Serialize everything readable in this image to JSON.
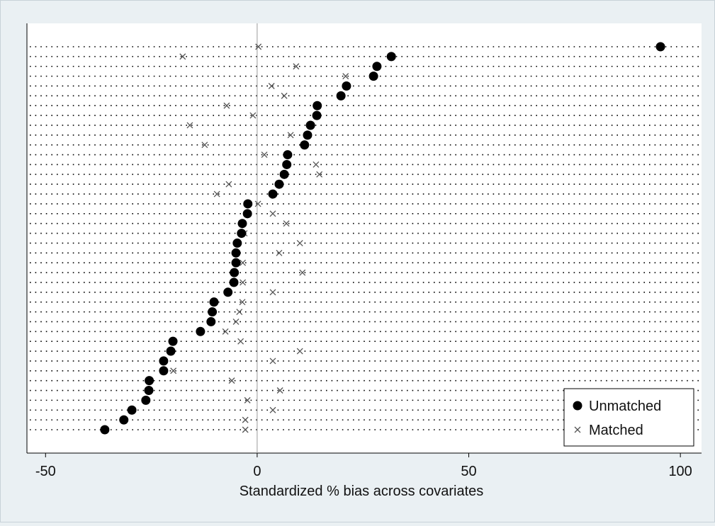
{
  "chart_data": {
    "type": "dot",
    "x_label": "Standardized % bias across covariates",
    "categories": [
      null,
      null,
      null,
      null,
      null,
      null,
      null,
      null,
      null,
      null,
      null,
      null,
      null,
      null,
      null,
      null,
      null,
      null,
      null,
      null,
      null,
      null,
      null,
      null,
      null,
      null,
      null,
      null,
      null,
      null,
      null,
      null,
      null,
      null,
      null,
      null,
      null,
      null,
      null,
      null
    ],
    "series": [
      {
        "name": "Unmatched",
        "color": "#000000",
        "marker": "circle",
        "values": [
          95.3,
          31.7,
          28.3,
          27.5,
          21.1,
          19.8,
          14.2,
          14.1,
          12.6,
          11.9,
          11.2,
          7.2,
          7.0,
          6.4,
          5.2,
          3.7,
          -2.2,
          -2.3,
          -3.5,
          -3.7,
          -4.7,
          -5.0,
          -5.0,
          -5.4,
          -5.5,
          -6.9,
          -10.2,
          -10.6,
          -10.9,
          -13.4,
          -19.9,
          -20.4,
          -22.1,
          -22.1,
          -25.5,
          -25.6,
          -26.3,
          -29.6,
          -31.5,
          -36.0
        ]
      },
      {
        "name": "Matched",
        "color": "#555555",
        "marker": "x",
        "values": [
          0.3,
          -17.6,
          9.2,
          20.9,
          3.4,
          6.4,
          -7.2,
          -1.0,
          -15.9,
          7.9,
          -12.4,
          1.7,
          13.9,
          14.7,
          -6.7,
          -9.5,
          0.2,
          3.7,
          6.9,
          -3.0,
          10.1,
          5.2,
          -3.4,
          10.7,
          -3.4,
          3.7,
          -3.5,
          -4.2,
          -5.0,
          -7.5,
          -3.9,
          10.1,
          3.7,
          -19.8,
          -6.0,
          5.4,
          -2.3,
          3.7,
          -2.8,
          -2.8
        ]
      }
    ],
    "xlim": [
      -54.4,
      105.0
    ],
    "xticks": [
      -50,
      0,
      50,
      100
    ],
    "xline": 0,
    "legend": "bottom-right"
  }
}
